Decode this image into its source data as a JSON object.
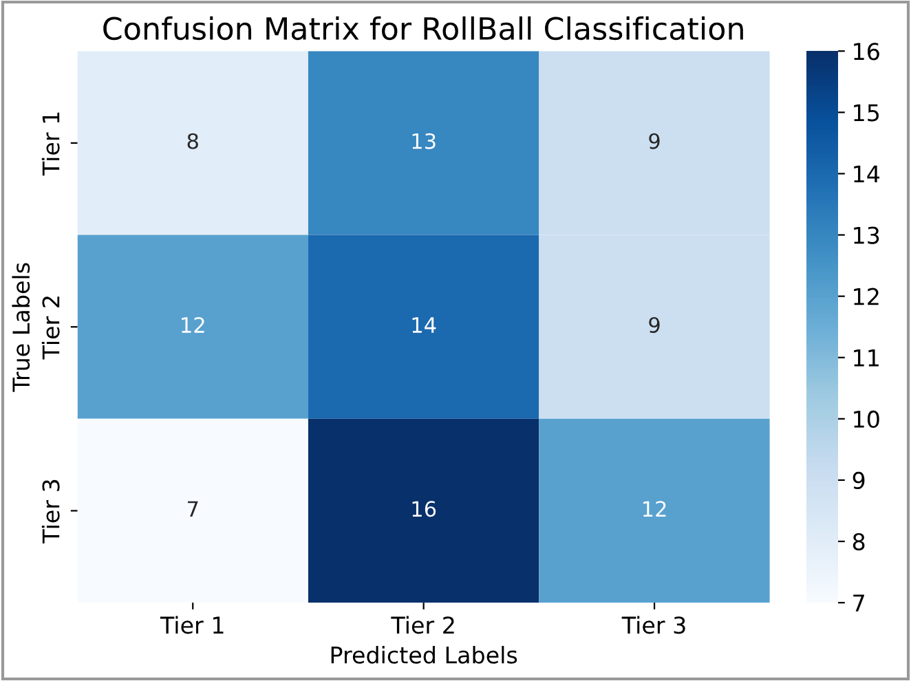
{
  "chart_data": {
    "type": "heatmap",
    "title": "Confusion Matrix for RollBall Classification",
    "xlabel": "Predicted Labels",
    "ylabel": "True Labels",
    "categories": [
      "Tier 1",
      "Tier 2",
      "Tier 3"
    ],
    "y_categories": [
      "Tier 1",
      "Tier 2",
      "Tier 3"
    ],
    "cells": [
      [
        8,
        13,
        9
      ],
      [
        12,
        14,
        9
      ],
      [
        7,
        16,
        12
      ]
    ],
    "clim": [
      7,
      16
    ],
    "cticks": [
      7,
      8,
      9,
      10,
      11,
      12,
      13,
      14,
      15,
      16
    ],
    "data_labels": true
  }
}
